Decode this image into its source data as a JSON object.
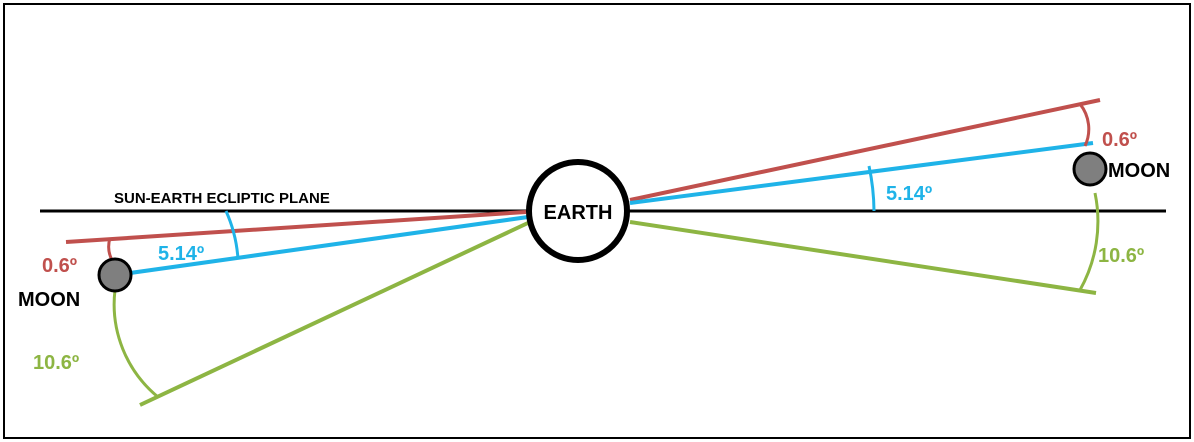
{
  "diagram": {
    "plane_label": "SUN-EARTH ECLIPTIC PLANE",
    "earth_label": "EARTH",
    "moon_left_label": "MOON",
    "moon_right_label": "MOON",
    "angle_red": "0.6º",
    "angle_blue": "5.14º",
    "angle_green": "10.6º"
  },
  "colors": {
    "frame": "#000000",
    "ecliptic": "#000000",
    "red_line": "#c0504d",
    "blue_line": "#1fb3e8",
    "green_line": "#8db543",
    "moon_fill": "#7f7f7f",
    "earth_fill": "#ffffff"
  }
}
